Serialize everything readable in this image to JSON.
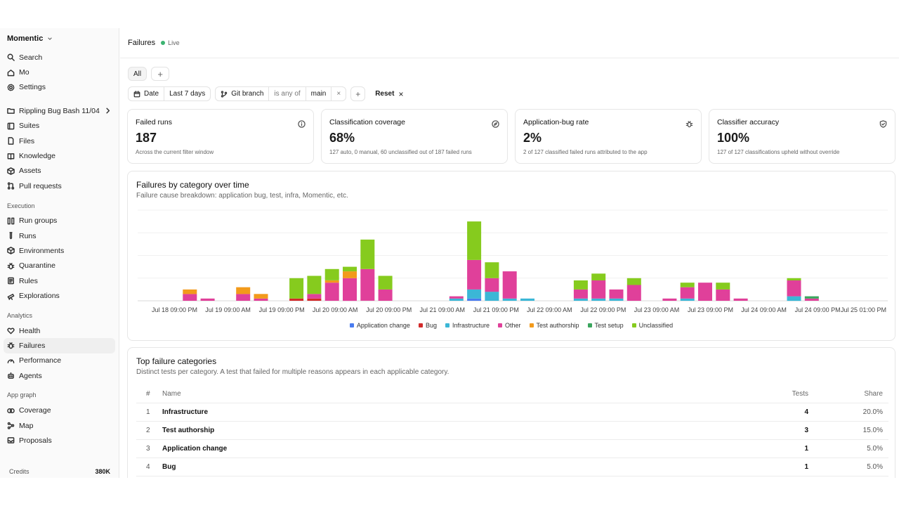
{
  "sidebar": {
    "workspace": "Momentic",
    "top_items": [
      {
        "label": "Search",
        "icon": "search-icon"
      },
      {
        "label": "Mo",
        "icon": "home-icon"
      },
      {
        "label": "Settings",
        "icon": "gear-icon"
      }
    ],
    "project": {
      "label": "Rippling Bug Bash 11/04",
      "icon": "folder-icon"
    },
    "project_items": [
      {
        "label": "Suites",
        "icon": "suites-icon"
      },
      {
        "label": "Files",
        "icon": "file-icon"
      },
      {
        "label": "Knowledge",
        "icon": "book-icon"
      },
      {
        "label": "Assets",
        "icon": "box-icon"
      },
      {
        "label": "Pull requests",
        "icon": "pull-request-icon"
      }
    ],
    "execution_label": "Execution",
    "execution_items": [
      {
        "label": "Run groups",
        "icon": "columns-icon"
      },
      {
        "label": "Runs",
        "icon": "test-tube-icon"
      },
      {
        "label": "Environments",
        "icon": "cube-icon"
      },
      {
        "label": "Quarantine",
        "icon": "bug-icon"
      },
      {
        "label": "Rules",
        "icon": "list-icon"
      },
      {
        "label": "Explorations",
        "icon": "telescope-icon"
      }
    ],
    "analytics_label": "Analytics",
    "analytics_items": [
      {
        "label": "Health",
        "icon": "heart-icon"
      },
      {
        "label": "Failures",
        "icon": "bug-icon"
      },
      {
        "label": "Performance",
        "icon": "gauge-icon"
      },
      {
        "label": "Agents",
        "icon": "robot-icon"
      }
    ],
    "appgraph_label": "App graph",
    "appgraph_items": [
      {
        "label": "Coverage",
        "icon": "coverage-icon"
      },
      {
        "label": "Map",
        "icon": "map-icon"
      },
      {
        "label": "Proposals",
        "icon": "inbox-icon"
      }
    ],
    "credits_label": "Credits",
    "credits_value": "380K"
  },
  "header": {
    "title": "Failures",
    "live": "Live"
  },
  "tabs": {
    "all": "All",
    "add": "+"
  },
  "filters": {
    "date_label": "Date",
    "date_value": "Last 7 days",
    "branch_label": "Git branch",
    "branch_op": "is any of",
    "branch_value": "main",
    "remove": "×",
    "add": "+",
    "reset": "Reset",
    "reset_x": "×"
  },
  "cards": [
    {
      "title": "Failed runs",
      "value": "187",
      "sub": "Across the current filter window",
      "icon": "info-icon"
    },
    {
      "title": "Classification coverage",
      "value": "68%",
      "sub": "127 auto, 0 manual, 60 unclassified out of 187 failed runs",
      "icon": "compass-icon"
    },
    {
      "title": "Application-bug rate",
      "value": "2%",
      "sub": "2 of 127 classified failed runs attributed to the app",
      "icon": "bug-icon"
    },
    {
      "title": "Classifier accuracy",
      "value": "100%",
      "sub": "127 of 127 classifications upheld without override",
      "icon": "shield-check-icon"
    }
  ],
  "chart": {
    "title": "Failures by category over time",
    "subtitle": "Failure cause breakdown: application bug, test, infra, Momentic, etc."
  },
  "chart_data": {
    "type": "bar",
    "stacked": true,
    "grid": true,
    "ylim": [
      0,
      40
    ],
    "x_tick_labels": [
      "Jul 18 09:00 PM",
      "Jul 19 09:00 AM",
      "Jul 19 09:00 PM",
      "Jul 20 09:00 AM",
      "Jul 20 09:00 PM",
      "Jul 21 09:00 AM",
      "Jul 21 09:00 PM",
      "Jul 22 09:00 AM",
      "Jul 22 09:00 PM",
      "Jul 23 09:00 AM",
      "Jul 23 09:00 PM",
      "Jul 24 09:00 AM",
      "Jul 24 09:00 PM",
      "Jul 25 01:00 PM"
    ],
    "bar_count": 42,
    "series": [
      {
        "name": "Application change",
        "color": "#4a7cf0",
        "points": [
          [
            17,
            1
          ]
        ]
      },
      {
        "name": "Bug",
        "color": "#d22b2b",
        "points": [
          [
            7,
            1
          ],
          [
            8,
            1
          ]
        ]
      },
      {
        "name": "Infrastructure",
        "color": "#3bb7d6",
        "points": [
          [
            16,
            1
          ],
          [
            17,
            4
          ],
          [
            18,
            4
          ],
          [
            19,
            1
          ],
          [
            20,
            1
          ],
          [
            23,
            1
          ],
          [
            24,
            1
          ],
          [
            25,
            1
          ],
          [
            29,
            1
          ],
          [
            35,
            2
          ]
        ]
      },
      {
        "name": "Other",
        "color": "#e0409a",
        "points": [
          [
            1,
            3
          ],
          [
            2,
            1
          ],
          [
            4,
            3
          ],
          [
            5,
            1
          ],
          [
            8,
            2
          ],
          [
            9,
            8
          ],
          [
            10,
            10
          ],
          [
            11,
            14
          ],
          [
            12,
            5
          ],
          [
            16,
            1
          ],
          [
            17,
            13
          ],
          [
            18,
            6
          ],
          [
            19,
            12
          ],
          [
            23,
            4
          ],
          [
            24,
            8
          ],
          [
            25,
            4
          ],
          [
            26,
            7
          ],
          [
            28,
            1
          ],
          [
            29,
            5
          ],
          [
            30,
            8
          ],
          [
            31,
            5
          ],
          [
            32,
            1
          ],
          [
            35,
            7
          ],
          [
            36,
            1
          ]
        ]
      },
      {
        "name": "Test authorship",
        "color": "#f29a1b",
        "points": [
          [
            1,
            2
          ],
          [
            4,
            3
          ],
          [
            5,
            2
          ],
          [
            9,
            1
          ],
          [
            10,
            3
          ]
        ]
      },
      {
        "name": "Test setup",
        "color": "#3aa55d",
        "points": [
          [
            36,
            1
          ]
        ]
      },
      {
        "name": "Unclassified",
        "color": "#86cb1e",
        "points": [
          [
            7,
            9
          ],
          [
            8,
            8
          ],
          [
            9,
            5
          ],
          [
            10,
            2
          ],
          [
            11,
            13
          ],
          [
            12,
            6
          ],
          [
            17,
            17
          ],
          [
            18,
            7
          ],
          [
            23,
            4
          ],
          [
            24,
            3
          ],
          [
            26,
            3
          ],
          [
            29,
            2
          ],
          [
            31,
            3
          ],
          [
            35,
            1
          ]
        ]
      }
    ]
  },
  "table": {
    "title": "Top failure categories",
    "subtitle": "Distinct tests per category. A test that failed for multiple reasons appears in each applicable category.",
    "headers": {
      "num": "#",
      "name": "Name",
      "tests": "Tests",
      "share": "Share"
    },
    "rows": [
      {
        "num": "1",
        "name": "Infrastructure",
        "tests": "4",
        "share": "20.0%"
      },
      {
        "num": "2",
        "name": "Test authorship",
        "tests": "3",
        "share": "15.0%"
      },
      {
        "num": "3",
        "name": "Application change",
        "tests": "1",
        "share": "5.0%"
      },
      {
        "num": "4",
        "name": "Bug",
        "tests": "1",
        "share": "5.0%"
      }
    ]
  }
}
